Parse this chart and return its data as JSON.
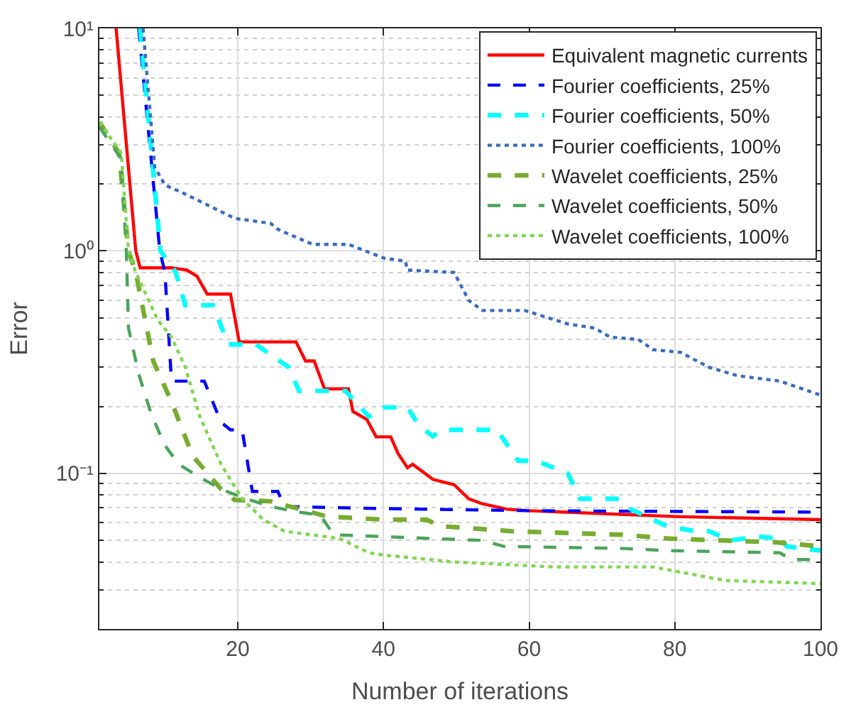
{
  "chart_data": {
    "type": "line",
    "xlabel": "Number of iterations",
    "ylabel": "Error",
    "log": "y",
    "grid": true,
    "legend": "top right",
    "xlim": [
      1,
      100
    ],
    "xticks": [
      20,
      40,
      60,
      80,
      100
    ],
    "ylim": [
      0.02,
      10
    ],
    "yticks": [
      {
        "value": 0.1,
        "label": "10⁻¹"
      },
      {
        "value": 1,
        "label": "10⁰"
      },
      {
        "value": 10,
        "label": "10¹"
      }
    ],
    "series": [
      {
        "name": "Equivalent magnetic currents",
        "color": "#ff0000",
        "line_style": "solid",
        "x": [
          3.3,
          6,
          6.6,
          10.9,
          13,
          14.4,
          15.8,
          19,
          20.2,
          28,
          29.3,
          30.5,
          31.9,
          35.2,
          35.8,
          37.7,
          39,
          41,
          42,
          43.3,
          44,
          46.8,
          49.7,
          51.7,
          53.6,
          57,
          60,
          80,
          100
        ],
        "values": [
          10,
          1.0,
          0.84,
          0.84,
          0.82,
          0.77,
          0.64,
          0.64,
          0.39,
          0.39,
          0.32,
          0.32,
          0.24,
          0.24,
          0.19,
          0.175,
          0.146,
          0.146,
          0.123,
          0.106,
          0.11,
          0.094,
          0.089,
          0.077,
          0.073,
          0.069,
          0.068,
          0.064,
          0.062
        ]
      },
      {
        "name": "Fourier coefficients, 25%",
        "color": "#0000ff",
        "line_style": "dashed",
        "x": [
          6.4,
          9.3,
          10,
          10.9,
          15.4,
          17.7,
          19,
          20.6,
          22,
          25.5,
          26.4,
          40,
          60,
          100
        ],
        "values": [
          10,
          1.0,
          0.8,
          0.26,
          0.26,
          0.17,
          0.157,
          0.157,
          0.083,
          0.083,
          0.071,
          0.0695,
          0.068,
          0.067
        ]
      },
      {
        "name": "Fourier coefficients, 50%",
        "color": "#00ffff",
        "line_style": "dashed",
        "x": [
          6.6,
          9.4,
          11.5,
          12.8,
          14.8,
          16.6,
          18.7,
          22.5,
          27,
          28.4,
          34.8,
          38,
          40,
          43.3,
          44.9,
          46.8,
          48,
          55.6,
          58.5,
          61,
          65.3,
          67,
          72,
          74,
          77,
          78.9,
          82.8,
          84.7,
          87.6,
          91.5,
          94.4,
          95.4,
          100
        ],
        "values": [
          10,
          1.0,
          0.8,
          0.57,
          0.57,
          0.57,
          0.38,
          0.38,
          0.3,
          0.235,
          0.235,
          0.18,
          0.198,
          0.198,
          0.164,
          0.147,
          0.157,
          0.157,
          0.114,
          0.114,
          0.1,
          0.077,
          0.077,
          0.069,
          0.062,
          0.058,
          0.055,
          0.055,
          0.05,
          0.052,
          0.051,
          0.047,
          0.045
        ]
      },
      {
        "name": "Fourier coefficients, 100%",
        "color": "#3a6bbf",
        "line_style": "dotted",
        "x": [
          7,
          8.6,
          10,
          12.8,
          19.6,
          24.5,
          25.5,
          30.3,
          35.2,
          40,
          43,
          43.3,
          49.7,
          51.7,
          53.6,
          59.4,
          65.3,
          69,
          71.1,
          75,
          77,
          80.8,
          84.7,
          88.6,
          94.4,
          100
        ],
        "values": [
          10,
          2.38,
          1.98,
          1.8,
          1.4,
          1.33,
          1.25,
          1.07,
          1.07,
          0.93,
          0.9,
          0.82,
          0.8,
          0.6,
          0.54,
          0.54,
          0.47,
          0.45,
          0.41,
          0.4,
          0.36,
          0.35,
          0.3,
          0.275,
          0.26,
          0.225
        ]
      },
      {
        "name": "Wavelet coefficients, 25%",
        "color": "#77ac30",
        "line_style": "dashed",
        "x": [
          1,
          3.7,
          5,
          6,
          8.4,
          10.9,
          13.8,
          17.7,
          19.6,
          24.5,
          32.3,
          40,
          45.9,
          47.8,
          57.6,
          73,
          78.9,
          94,
          100
        ],
        "values": [
          3.8,
          2.75,
          1.0,
          0.8,
          0.32,
          0.21,
          0.12,
          0.085,
          0.076,
          0.075,
          0.064,
          0.062,
          0.062,
          0.058,
          0.055,
          0.053,
          0.051,
          0.049,
          0.047
        ]
      },
      {
        "name": "Wavelet coefficients, 50%",
        "color": "#4aa35a",
        "line_style": "dashed",
        "x": [
          1,
          4,
          4.7,
          5,
          6.4,
          8,
          9.9,
          11.9,
          14.8,
          17.7,
          20.6,
          24.5,
          28.4,
          31.3,
          33.2,
          40,
          53.6,
          56.5,
          73,
          78.9,
          94.4,
          96,
          100
        ],
        "values": [
          3.6,
          2.6,
          1.0,
          0.45,
          0.28,
          0.19,
          0.135,
          0.11,
          0.096,
          0.085,
          0.078,
          0.071,
          0.067,
          0.065,
          0.053,
          0.052,
          0.05,
          0.047,
          0.046,
          0.045,
          0.044,
          0.041,
          0.041
        ]
      },
      {
        "name": "Wavelet coefficients, 100%",
        "color": "#7fd650",
        "line_style": "dotted",
        "x": [
          1,
          4,
          5,
          6,
          9,
          10.9,
          12.8,
          14.8,
          17.7,
          20.6,
          23.5,
          26.4,
          34,
          38,
          40,
          49.7,
          63.4,
          77,
          87,
          100
        ],
        "values": [
          3.8,
          2.75,
          1.0,
          0.8,
          0.49,
          0.41,
          0.3,
          0.18,
          0.11,
          0.077,
          0.062,
          0.055,
          0.051,
          0.044,
          0.043,
          0.04,
          0.038,
          0.038,
          0.033,
          0.032
        ]
      }
    ]
  }
}
